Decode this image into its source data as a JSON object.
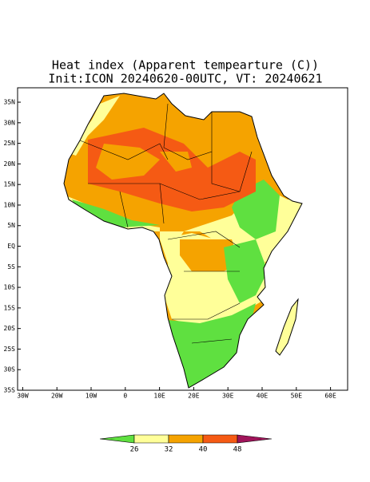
{
  "title": "Heat index (Apparent tempearture (C))",
  "subtitle": "Init:ICON 20240620-00UTC, VT: 20240621",
  "lonlim": [
    -31.5,
    65
  ],
  "latlim": [
    -35,
    38.5
  ],
  "lon_ticks": [
    {
      "value": -30,
      "label": "30W"
    },
    {
      "value": -20,
      "label": "20W"
    },
    {
      "value": -10,
      "label": "10W"
    },
    0,
    {
      "value": 10,
      "label": "10E"
    },
    {
      "value": 20,
      "label": "20E"
    },
    {
      "value": 30,
      "label": "30E"
    },
    {
      "value": 40,
      "label": "40E"
    },
    {
      "value": 50,
      "label": "50E"
    },
    {
      "value": 60,
      "label": "60E"
    }
  ],
  "lat_ticks": [
    {
      "value": 35,
      "label": "35N"
    },
    {
      "value": 30,
      "label": "30N"
    },
    {
      "value": 25,
      "label": "25N"
    },
    {
      "value": 20,
      "label": "20N"
    },
    {
      "value": 15,
      "label": "15N"
    },
    {
      "value": 10,
      "label": "10N"
    },
    {
      "value": 5,
      "label": "5N"
    },
    {
      "value": 0,
      "label": "EQ"
    },
    {
      "value": -5,
      "label": "5S"
    },
    {
      "value": -10,
      "label": "10S"
    },
    {
      "value": -15,
      "label": "15S"
    },
    {
      "value": -20,
      "label": "20S"
    },
    {
      "value": -25,
      "label": "25S"
    },
    {
      "value": -30,
      "label": "30S"
    },
    {
      "value": -35,
      "label": "35S"
    }
  ],
  "colorbar": {
    "levels": [
      26,
      32,
      40,
      48
    ],
    "colors": [
      "#5fe040",
      "#ffff99",
      "#f5a300",
      "#f55a14",
      "#a0145a"
    ]
  }
}
